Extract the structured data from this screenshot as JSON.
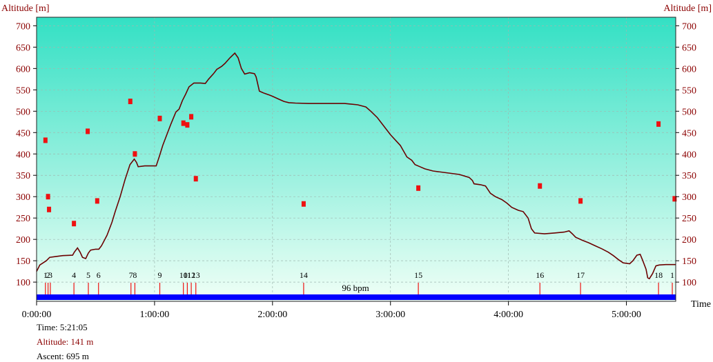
{
  "chart_data": {
    "type": "line",
    "xlabel": "Time",
    "ylabel_left": "Altitude [m]",
    "ylabel_right": "Altitude [m]",
    "x_unit": "seconds",
    "xlim": [
      0,
      19505
    ],
    "ylim": [
      55,
      720
    ],
    "y_ticks": [
      100,
      150,
      200,
      250,
      300,
      350,
      400,
      450,
      500,
      550,
      600,
      650,
      700
    ],
    "x_ticks": [
      {
        "t": 0,
        "label": "0:00:00"
      },
      {
        "t": 3600,
        "label": "1:00:00"
      },
      {
        "t": 7200,
        "label": "2:00:00"
      },
      {
        "t": 10800,
        "label": "3:00:00"
      },
      {
        "t": 14400,
        "label": "4:00:00"
      },
      {
        "t": 18000,
        "label": "5:00:00"
      }
    ],
    "grid": true,
    "colors": {
      "background_top": "#33e0c4",
      "background_bottom": "#f0fff6",
      "altitude_line": "#6b0000",
      "laps": "#ee1111",
      "heart_rate_bar": "#0000ff",
      "axis_text": "#000000",
      "axis_label": "#8b0000",
      "frame": "#222222"
    },
    "series": [
      {
        "name": "Altitude",
        "points": [
          [
            0,
            125
          ],
          [
            100,
            140
          ],
          [
            300,
            150
          ],
          [
            400,
            158
          ],
          [
            600,
            160
          ],
          [
            800,
            162
          ],
          [
            1100,
            163
          ],
          [
            1150,
            170
          ],
          [
            1250,
            180
          ],
          [
            1330,
            170
          ],
          [
            1400,
            158
          ],
          [
            1500,
            155
          ],
          [
            1580,
            168
          ],
          [
            1650,
            175
          ],
          [
            1800,
            177
          ],
          [
            1900,
            177
          ],
          [
            1980,
            185
          ],
          [
            2050,
            195
          ],
          [
            2150,
            210
          ],
          [
            2300,
            240
          ],
          [
            2400,
            265
          ],
          [
            2550,
            300
          ],
          [
            2700,
            340
          ],
          [
            2850,
            375
          ],
          [
            2980,
            388
          ],
          [
            3050,
            380
          ],
          [
            3100,
            370
          ],
          [
            3300,
            372
          ],
          [
            3500,
            372
          ],
          [
            3650,
            372
          ],
          [
            3750,
            395
          ],
          [
            3850,
            420
          ],
          [
            3950,
            440
          ],
          [
            4100,
            470
          ],
          [
            4250,
            498
          ],
          [
            4350,
            505
          ],
          [
            4450,
            525
          ],
          [
            4550,
            540
          ],
          [
            4650,
            557
          ],
          [
            4800,
            566
          ],
          [
            5000,
            566
          ],
          [
            5150,
            565
          ],
          [
            5250,
            575
          ],
          [
            5400,
            588
          ],
          [
            5500,
            598
          ],
          [
            5650,
            605
          ],
          [
            5750,
            612
          ],
          [
            5900,
            625
          ],
          [
            6050,
            636
          ],
          [
            6150,
            625
          ],
          [
            6250,
            600
          ],
          [
            6350,
            587
          ],
          [
            6500,
            590
          ],
          [
            6650,
            588
          ],
          [
            6700,
            580
          ],
          [
            6800,
            547
          ],
          [
            6950,
            542
          ],
          [
            7100,
            538
          ],
          [
            7200,
            535
          ],
          [
            7400,
            528
          ],
          [
            7550,
            523
          ],
          [
            7700,
            520
          ],
          [
            7900,
            519
          ],
          [
            8300,
            518
          ],
          [
            8800,
            518
          ],
          [
            9400,
            518
          ],
          [
            9800,
            515
          ],
          [
            10050,
            510
          ],
          [
            10200,
            500
          ],
          [
            10400,
            485
          ],
          [
            10600,
            465
          ],
          [
            10800,
            445
          ],
          [
            11100,
            420
          ],
          [
            11300,
            393
          ],
          [
            11450,
            385
          ],
          [
            11550,
            375
          ],
          [
            11700,
            370
          ],
          [
            11850,
            365
          ],
          [
            12100,
            360
          ],
          [
            12500,
            356
          ],
          [
            12900,
            352
          ],
          [
            13200,
            345
          ],
          [
            13300,
            338
          ],
          [
            13350,
            330
          ],
          [
            13550,
            328
          ],
          [
            13700,
            325
          ],
          [
            13850,
            308
          ],
          [
            14000,
            300
          ],
          [
            14200,
            293
          ],
          [
            14350,
            285
          ],
          [
            14500,
            275
          ],
          [
            14700,
            268
          ],
          [
            14850,
            265
          ],
          [
            15000,
            250
          ],
          [
            15100,
            225
          ],
          [
            15200,
            215
          ],
          [
            15500,
            213
          ],
          [
            15800,
            215
          ],
          [
            16100,
            217
          ],
          [
            16250,
            220
          ],
          [
            16350,
            213
          ],
          [
            16450,
            205
          ],
          [
            16650,
            198
          ],
          [
            16850,
            192
          ],
          [
            17050,
            185
          ],
          [
            17250,
            178
          ],
          [
            17450,
            170
          ],
          [
            17600,
            162
          ],
          [
            17750,
            153
          ],
          [
            17900,
            145
          ],
          [
            18100,
            143
          ],
          [
            18200,
            150
          ],
          [
            18320,
            163
          ],
          [
            18420,
            165
          ],
          [
            18500,
            150
          ],
          [
            18600,
            130
          ],
          [
            18650,
            110
          ],
          [
            18700,
            108
          ],
          [
            18800,
            120
          ],
          [
            18900,
            138
          ],
          [
            19000,
            140
          ],
          [
            19200,
            141
          ],
          [
            19505,
            141
          ]
        ]
      }
    ],
    "lap_markers": [
      {
        "label": "1",
        "t": 270
      },
      {
        "label": "2",
        "t": 350
      },
      {
        "label": "3",
        "t": 420
      },
      {
        "label": "4",
        "t": 1140
      },
      {
        "label": "5",
        "t": 1580
      },
      {
        "label": "6",
        "t": 1890
      },
      {
        "label": "7",
        "t": 2880
      },
      {
        "label": "8",
        "t": 3000
      },
      {
        "label": "9",
        "t": 3760
      },
      {
        "label": "10",
        "t": 4480
      },
      {
        "label": "11",
        "t": 4600
      },
      {
        "label": "12",
        "t": 4720
      },
      {
        "label": "13",
        "t": 4860
      },
      {
        "label": "14",
        "t": 8150
      },
      {
        "label": "15",
        "t": 11650
      },
      {
        "label": "16",
        "t": 15360
      },
      {
        "label": "17",
        "t": 16600
      },
      {
        "label": "18",
        "t": 18980
      },
      {
        "label": "1",
        "t": 19400
      }
    ],
    "lap_dots": [
      {
        "t": 270,
        "y": 432
      },
      {
        "t": 350,
        "y": 300
      },
      {
        "t": 380,
        "y": 270
      },
      {
        "t": 1140,
        "y": 237
      },
      {
        "t": 1560,
        "y": 453
      },
      {
        "t": 1850,
        "y": 290
      },
      {
        "t": 2860,
        "y": 523
      },
      {
        "t": 3000,
        "y": 400
      },
      {
        "t": 3760,
        "y": 483
      },
      {
        "t": 4480,
        "y": 472
      },
      {
        "t": 4600,
        "y": 468
      },
      {
        "t": 4720,
        "y": 487
      },
      {
        "t": 4860,
        "y": 342
      },
      {
        "t": 8150,
        "y": 283
      },
      {
        "t": 11650,
        "y": 320
      },
      {
        "t": 15360,
        "y": 325
      },
      {
        "t": 16600,
        "y": 290
      },
      {
        "t": 18980,
        "y": 470
      },
      {
        "t": 19470,
        "y": 295
      }
    ],
    "hr_bar_label": "96 bpm"
  },
  "info": {
    "time": "Time: 5:21:05",
    "altitude": "Altitude: 141 m",
    "ascent": "Ascent: 695 m"
  }
}
